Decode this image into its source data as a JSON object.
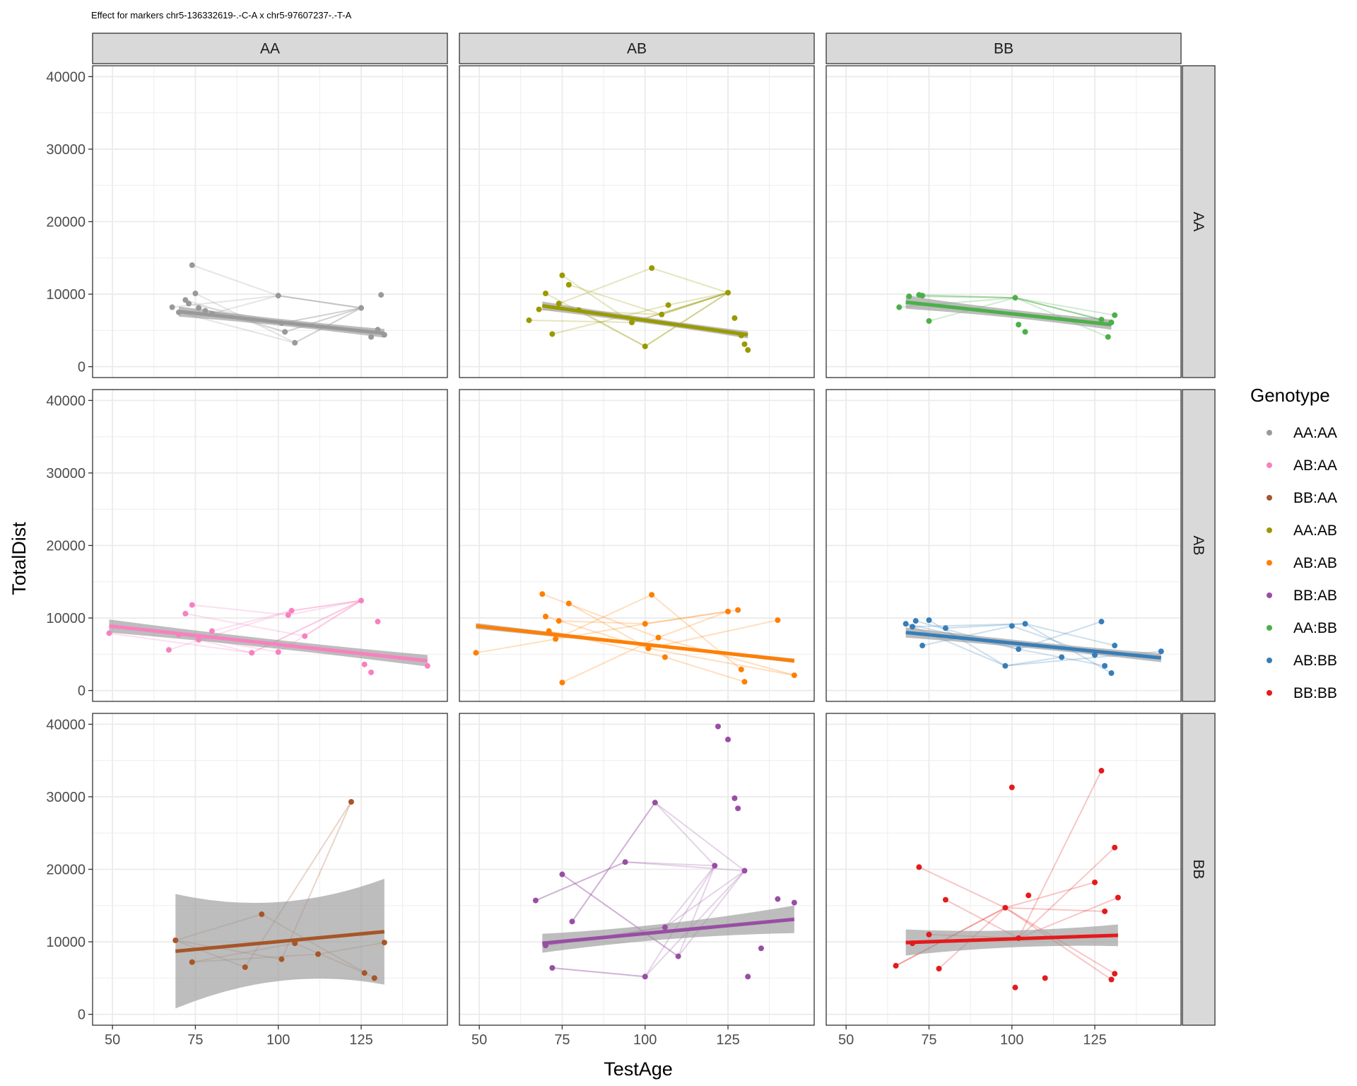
{
  "chart_data": {
    "type": "scatter",
    "title": "Effect for markers chr5-136332619-.-C-A x chr5-97607237-.-T-A",
    "xlabel": "TestAge",
    "ylabel": "TotalDist",
    "xlim": [
      44,
      151
    ],
    "ylim": [
      -1500,
      41500
    ],
    "x_ticks": [
      "50",
      "75",
      "100",
      "125"
    ],
    "y_ticks": [
      "0",
      "10000",
      "20000",
      "30000",
      "40000"
    ],
    "facet_columns": [
      "AA",
      "AB",
      "BB"
    ],
    "facet_rows": [
      "AA",
      "AB",
      "BB"
    ],
    "legend": {
      "title": "Genotype",
      "position": "right",
      "entries": [
        "AA:AA",
        "AB:AA",
        "BB:AA",
        "AA:AB",
        "AB:AB",
        "BB:AB",
        "AA:BB",
        "AB:BB",
        "BB:BB"
      ]
    },
    "colors": {
      "AA:AA": "#999999",
      "AB:AA": "#f781bf",
      "BB:AA": "#a65628",
      "AA:AB": "#999900",
      "AB:AB": "#ff7f00",
      "BB:AB": "#984ea3",
      "AA:BB": "#4daf4a",
      "AB:BB": "#377eb8",
      "BB:BB": "#e41a1c"
    },
    "panels": [
      {
        "row": "AA",
        "col": "AA",
        "genotype": "AA:AA",
        "fit": {
          "x": [
            70,
            132
          ],
          "y": [
            7600,
            4600
          ],
          "ci_half": [
            700,
            600
          ]
        },
        "points": [
          [
            68,
            8200
          ],
          [
            70,
            7500
          ],
          [
            72,
            9200
          ],
          [
            73,
            8700
          ],
          [
            74,
            14000
          ],
          [
            75,
            10100
          ],
          [
            76,
            8100
          ],
          [
            78,
            7700
          ],
          [
            80,
            7300
          ],
          [
            100,
            9800
          ],
          [
            101,
            6000
          ],
          [
            102,
            4800
          ],
          [
            105,
            3300
          ],
          [
            125,
            8100
          ],
          [
            128,
            4100
          ],
          [
            130,
            5100
          ],
          [
            131,
            9900
          ],
          [
            132,
            4400
          ]
        ]
      },
      {
        "row": "AA",
        "col": "AB",
        "genotype": "AA:AB",
        "fit": {
          "x": [
            69,
            131
          ],
          "y": [
            8400,
            4400
          ],
          "ci_half": [
            600,
            500
          ]
        },
        "points": [
          [
            65,
            6400
          ],
          [
            68,
            7900
          ],
          [
            70,
            10100
          ],
          [
            72,
            4500
          ],
          [
            74,
            8700
          ],
          [
            75,
            12600
          ],
          [
            77,
            11300
          ],
          [
            80,
            7800
          ],
          [
            96,
            6100
          ],
          [
            100,
            2800
          ],
          [
            102,
            13600
          ],
          [
            105,
            7200
          ],
          [
            107,
            8500
          ],
          [
            125,
            10200
          ],
          [
            127,
            6700
          ],
          [
            129,
            4300
          ],
          [
            130,
            3100
          ],
          [
            131,
            2300
          ]
        ]
      },
      {
        "row": "AA",
        "col": "BB",
        "genotype": "AA:BB",
        "fit": {
          "x": [
            68,
            130
          ],
          "y": [
            8900,
            5800
          ],
          "ci_half": [
            900,
            700
          ]
        },
        "points": [
          [
            66,
            8200
          ],
          [
            69,
            9700
          ],
          [
            72,
            9900
          ],
          [
            73,
            9800
          ],
          [
            75,
            6300
          ],
          [
            101,
            9500
          ],
          [
            102,
            5800
          ],
          [
            104,
            4800
          ],
          [
            127,
            6500
          ],
          [
            129,
            4100
          ],
          [
            130,
            6100
          ],
          [
            131,
            7100
          ]
        ]
      },
      {
        "row": "AB",
        "col": "AA",
        "genotype": "AB:AA",
        "fit": {
          "x": [
            49,
            145
          ],
          "y": [
            8900,
            4100
          ],
          "ci_half": [
            900,
            800
          ]
        },
        "points": [
          [
            49,
            7900
          ],
          [
            67,
            5600
          ],
          [
            70,
            7700
          ],
          [
            72,
            10600
          ],
          [
            74,
            11800
          ],
          [
            76,
            7000
          ],
          [
            80,
            8200
          ],
          [
            92,
            5200
          ],
          [
            100,
            5300
          ],
          [
            103,
            10400
          ],
          [
            104,
            11000
          ],
          [
            108,
            7500
          ],
          [
            125,
            12400
          ],
          [
            126,
            3600
          ],
          [
            128,
            2500
          ],
          [
            130,
            9500
          ],
          [
            145,
            3400
          ]
        ]
      },
      {
        "row": "AB",
        "col": "AB",
        "genotype": "AB:AB",
        "fit": {
          "x": [
            49,
            145
          ],
          "y": [
            8900,
            4100
          ],
          "ci_half": [
            400,
            300
          ]
        },
        "points": [
          [
            49,
            5200
          ],
          [
            69,
            13300
          ],
          [
            70,
            10200
          ],
          [
            71,
            8200
          ],
          [
            73,
            7100
          ],
          [
            74,
            9600
          ],
          [
            75,
            1100
          ],
          [
            77,
            12000
          ],
          [
            100,
            9200
          ],
          [
            101,
            5800
          ],
          [
            102,
            13200
          ],
          [
            104,
            7300
          ],
          [
            106,
            4600
          ],
          [
            125,
            10900
          ],
          [
            128,
            11100
          ],
          [
            129,
            2900
          ],
          [
            130,
            1200
          ],
          [
            140,
            9700
          ],
          [
            145,
            2100
          ]
        ]
      },
      {
        "row": "AB",
        "col": "BB",
        "genotype": "AB:BB",
        "fit": {
          "x": [
            68,
            145
          ],
          "y": [
            8000,
            4500
          ],
          "ci_half": [
            700,
            600
          ]
        },
        "points": [
          [
            68,
            9200
          ],
          [
            70,
            8800
          ],
          [
            71,
            9600
          ],
          [
            73,
            6200
          ],
          [
            75,
            9700
          ],
          [
            80,
            8600
          ],
          [
            98,
            3400
          ],
          [
            100,
            8900
          ],
          [
            102,
            5700
          ],
          [
            104,
            9200
          ],
          [
            115,
            4600
          ],
          [
            125,
            4900
          ],
          [
            127,
            9500
          ],
          [
            128,
            3400
          ],
          [
            130,
            2400
          ],
          [
            131,
            6200
          ],
          [
            145,
            5400
          ]
        ]
      },
      {
        "row": "BB",
        "col": "AA",
        "genotype": "BB:AA",
        "fit": {
          "x": [
            69,
            132
          ],
          "y": [
            8700,
            11400
          ],
          "ci_half": [
            7900,
            7300
          ]
        },
        "points": [
          [
            69,
            10200
          ],
          [
            74,
            7200
          ],
          [
            90,
            6500
          ],
          [
            95,
            13800
          ],
          [
            101,
            7600
          ],
          [
            105,
            9800
          ],
          [
            112,
            8300
          ],
          [
            122,
            29300
          ],
          [
            126,
            5700
          ],
          [
            129,
            5000
          ],
          [
            132,
            9900
          ]
        ]
      },
      {
        "row": "BB",
        "col": "AB",
        "genotype": "BB:AB",
        "fit": {
          "x": [
            69,
            145
          ],
          "y": [
            9800,
            13100
          ],
          "ci_half": [
            1300,
            1900
          ]
        },
        "points": [
          [
            67,
            15700
          ],
          [
            70,
            9500
          ],
          [
            72,
            6400
          ],
          [
            75,
            19300
          ],
          [
            78,
            12800
          ],
          [
            94,
            21000
          ],
          [
            100,
            5200
          ],
          [
            103,
            29200
          ],
          [
            106,
            12000
          ],
          [
            110,
            8000
          ],
          [
            121,
            20500
          ],
          [
            122,
            39700
          ],
          [
            125,
            37900
          ],
          [
            127,
            29800
          ],
          [
            128,
            28400
          ],
          [
            130,
            19800
          ],
          [
            131,
            5200
          ],
          [
            135,
            9100
          ],
          [
            145,
            15400
          ],
          [
            140,
            15900
          ]
        ]
      },
      {
        "row": "BB",
        "col": "BB",
        "genotype": "BB:BB",
        "fit": {
          "x": [
            68,
            132
          ],
          "y": [
            9900,
            10900
          ],
          "ci_half": [
            1800,
            1500
          ]
        },
        "points": [
          [
            65,
            6700
          ],
          [
            70,
            9800
          ],
          [
            72,
            20300
          ],
          [
            75,
            11000
          ],
          [
            78,
            6300
          ],
          [
            80,
            15800
          ],
          [
            98,
            14700
          ],
          [
            100,
            31300
          ],
          [
            101,
            3700
          ],
          [
            102,
            10500
          ],
          [
            105,
            16400
          ],
          [
            110,
            5000
          ],
          [
            125,
            18200
          ],
          [
            127,
            33600
          ],
          [
            128,
            14200
          ],
          [
            130,
            4800
          ],
          [
            131,
            23000
          ],
          [
            132,
            16100
          ],
          [
            131,
            5600
          ]
        ]
      }
    ]
  }
}
